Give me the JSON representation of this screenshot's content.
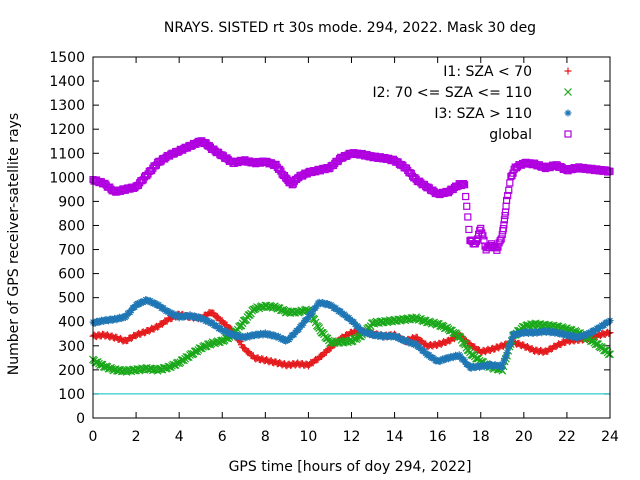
{
  "chart_data": {
    "type": "scatter",
    "title": "NRAYS. SISTED rt 30s mode. 294, 2022. Mask 30 deg",
    "xlabel": "GPS time [hours of doy 294, 2022]",
    "ylabel": "Number of GPS receiver-satellite rays",
    "xlim": [
      0,
      24
    ],
    "ylim": [
      0,
      1500
    ],
    "xticks": [
      "0",
      "2",
      "4",
      "6",
      "8",
      "10",
      "12",
      "14",
      "16",
      "18",
      "20",
      "22",
      "24"
    ],
    "yticks": [
      "0",
      "100",
      "200",
      "300",
      "400",
      "500",
      "600",
      "700",
      "800",
      "900",
      "1000",
      "1100",
      "1200",
      "1300",
      "1400",
      "1500"
    ],
    "reference_line": {
      "y": 100,
      "color": "#00c0c0"
    },
    "legend_position": "top-right",
    "series": [
      {
        "name": "I1: SZA < 70",
        "marker": "+",
        "color": "#e41a1c",
        "x": [
          0,
          0.5,
          1,
          1.5,
          2,
          2.5,
          3,
          3.5,
          4,
          4.5,
          5,
          5.5,
          6,
          6.5,
          7,
          7.5,
          8,
          8.5,
          9,
          9.5,
          10,
          10.5,
          11,
          11.5,
          12,
          12.5,
          13,
          13.5,
          14,
          14.5,
          15,
          15.5,
          16,
          16.5,
          17,
          17.5,
          18,
          18.5,
          19,
          19.5,
          20,
          20.5,
          21,
          21.5,
          22,
          22.5,
          23,
          23.5,
          24
        ],
        "y": [
          340,
          345,
          335,
          320,
          345,
          360,
          380,
          410,
          430,
          420,
          415,
          440,
          400,
          360,
          290,
          250,
          240,
          230,
          220,
          225,
          220,
          250,
          290,
          330,
          355,
          360,
          350,
          340,
          345,
          320,
          335,
          300,
          305,
          320,
          345,
          305,
          275,
          285,
          300,
          315,
          300,
          280,
          275,
          300,
          320,
          325,
          330,
          345,
          355
        ]
      },
      {
        "name": "I2: 70 <= SZA <= 110",
        "marker": "x",
        "color": "#1aa81a",
        "x": [
          0,
          0.5,
          1,
          1.5,
          2,
          2.5,
          3,
          3.5,
          4,
          4.5,
          5,
          5.5,
          6,
          6.5,
          7,
          7.5,
          8,
          8.5,
          9,
          9.5,
          10,
          10.5,
          11,
          11.5,
          12,
          12.5,
          13,
          13.5,
          14,
          14.5,
          15,
          15.5,
          16,
          16.5,
          17,
          17.5,
          18,
          18.5,
          19,
          19.5,
          20,
          20.5,
          21,
          21.5,
          22,
          22.5,
          23,
          23.5,
          24
        ],
        "y": [
          240,
          215,
          200,
          195,
          200,
          205,
          200,
          210,
          230,
          260,
          290,
          310,
          320,
          345,
          400,
          455,
          465,
          460,
          440,
          440,
          450,
          370,
          315,
          315,
          320,
          345,
          395,
          400,
          405,
          410,
          415,
          400,
          390,
          370,
          340,
          270,
          235,
          210,
          200,
          340,
          380,
          390,
          385,
          380,
          370,
          355,
          330,
          300,
          265
        ]
      },
      {
        "name": "I3: SZA > 110",
        "marker": "*",
        "color": "#1f77b4",
        "x": [
          0,
          0.5,
          1,
          1.5,
          2,
          2.5,
          3,
          3.5,
          4,
          4.5,
          5,
          5.5,
          6,
          6.5,
          7,
          7.5,
          8,
          8.5,
          9,
          9.5,
          10,
          10.5,
          11,
          11.5,
          12,
          12.5,
          13,
          13.5,
          14,
          14.5,
          15,
          15.5,
          16,
          16.5,
          17,
          17.5,
          18,
          18.5,
          19,
          19.5,
          20,
          20.5,
          21,
          21.5,
          22,
          22.5,
          23,
          23.5,
          24
        ],
        "y": [
          395,
          405,
          410,
          420,
          470,
          490,
          470,
          440,
          420,
          425,
          415,
          395,
          365,
          345,
          335,
          345,
          350,
          340,
          320,
          365,
          420,
          480,
          470,
          440,
          405,
          360,
          345,
          340,
          340,
          320,
          305,
          265,
          235,
          250,
          260,
          210,
          215,
          220,
          215,
          345,
          355,
          355,
          360,
          355,
          345,
          335,
          350,
          375,
          405
        ]
      },
      {
        "name": "global",
        "marker": "square",
        "color": "#b000e0",
        "x": [
          0,
          0.5,
          1,
          1.5,
          2,
          2.5,
          3,
          3.5,
          4,
          4.5,
          5,
          5.25,
          5.5,
          6,
          6.5,
          7,
          7.5,
          8,
          8.5,
          9,
          9.25,
          9.5,
          10,
          10.5,
          11,
          11.5,
          12,
          12.5,
          13,
          13.5,
          14,
          14.5,
          15,
          15.5,
          16,
          16.5,
          17,
          17.25,
          17.5,
          17.75,
          18,
          18.25,
          18.5,
          18.75,
          19,
          19.1,
          19.2,
          19.4,
          19.6,
          20,
          20.5,
          21,
          21.5,
          22,
          22.5,
          23,
          23.5,
          24
        ],
        "y": [
          990,
          975,
          940,
          950,
          960,
          1010,
          1060,
          1090,
          1110,
          1130,
          1150,
          1140,
          1120,
          1090,
          1060,
          1070,
          1060,
          1065,
          1050,
          990,
          970,
          1000,
          1020,
          1030,
          1040,
          1080,
          1100,
          1095,
          1085,
          1080,
          1070,
          1040,
          990,
          960,
          930,
          940,
          970,
          970,
          740,
          720,
          790,
          700,
          720,
          700,
          760,
          820,
          900,
          1000,
          1040,
          1060,
          1055,
          1040,
          1050,
          1030,
          1040,
          1035,
          1030,
          1025
        ]
      }
    ]
  }
}
